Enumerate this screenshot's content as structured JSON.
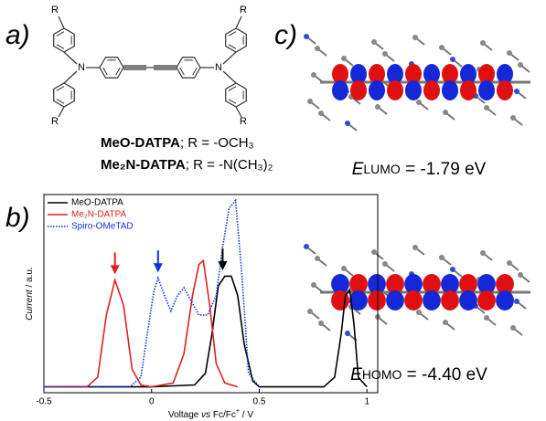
{
  "panels": {
    "a": {
      "label": "a)",
      "atoms": [
        "R",
        "N",
        "R",
        "R",
        "N",
        "R"
      ],
      "captions": [
        {
          "name": "MeO-DATPA",
          "formula": "; R = -OCH₃"
        },
        {
          "name": "Me₂N-DATPA",
          "formula": "; R = -N(CH₃)₂"
        }
      ]
    },
    "b": {
      "label": "b)"
    },
    "c": {
      "label": "c)",
      "orbitals": [
        {
          "symbol": "E",
          "subscript": "LUMO",
          "value": " = -1.79 eV"
        },
        {
          "symbol": "E",
          "subscript": "HOMO",
          "value": " = -4.40 eV"
        }
      ]
    }
  },
  "chart_data": {
    "type": "line",
    "xlabel": [
      {
        "text": "Voltage ",
        "style": "normal"
      },
      {
        "text": "vs",
        "style": "italic"
      },
      {
        "text": " Fc/Fc",
        "style": "normal"
      },
      {
        "text": "+",
        "style": "sup"
      },
      {
        "text": " / V",
        "style": "normal"
      }
    ],
    "ylabel": [
      {
        "text": "Current",
        "style": "italic"
      },
      {
        "text": " / a.u.",
        "style": "normal"
      }
    ],
    "xlim": [
      -0.5,
      1.05
    ],
    "ylim": [
      0,
      1.02
    ],
    "xticks": [
      -0.5,
      0,
      0.5,
      1
    ],
    "legend": "upper left",
    "series": [
      {
        "name": "MeO-DATPA",
        "color": "#000000",
        "dash": "solid",
        "x": [
          -0.5,
          0,
          0.2,
          0.25,
          0.28,
          0.31,
          0.34,
          0.37,
          0.4,
          0.43,
          0.47,
          0.5,
          0.8,
          0.85,
          0.88,
          0.9,
          0.92,
          0.94,
          0.96,
          1.0
        ],
        "values": [
          0.03,
          0.03,
          0.04,
          0.1,
          0.3,
          0.55,
          0.6,
          0.6,
          0.5,
          0.25,
          0.06,
          0.03,
          0.03,
          0.08,
          0.3,
          0.5,
          0.53,
          0.35,
          0.08,
          0.03
        ]
      },
      {
        "name": "Me₂N-DATPA",
        "color": "#e02020",
        "dash": "solid",
        "x": [
          -0.5,
          -0.3,
          -0.25,
          -0.21,
          -0.17,
          -0.13,
          -0.09,
          -0.05,
          0,
          0.1,
          0.15,
          0.19,
          0.22,
          0.24,
          0.27,
          0.3,
          0.34,
          0.4
        ],
        "values": [
          0.03,
          0.03,
          0.08,
          0.4,
          0.58,
          0.45,
          0.12,
          0.04,
          0.03,
          0.05,
          0.2,
          0.5,
          0.66,
          0.68,
          0.45,
          0.15,
          0.05,
          0.03
        ]
      },
      {
        "name": "Spiro-OMeTAD",
        "color": "#1030e0",
        "dash": "dotted",
        "x": [
          -0.5,
          -0.1,
          -0.05,
          -0.02,
          0.01,
          0.03,
          0.06,
          0.09,
          0.12,
          0.15,
          0.18,
          0.22,
          0.26,
          0.3,
          0.33,
          0.36,
          0.39,
          0.42,
          0.45,
          0.5
        ],
        "values": [
          0.03,
          0.03,
          0.08,
          0.3,
          0.52,
          0.59,
          0.5,
          0.42,
          0.5,
          0.54,
          0.48,
          0.4,
          0.4,
          0.5,
          0.75,
          0.95,
          0.99,
          0.6,
          0.1,
          0.03
        ]
      }
    ]
  }
}
